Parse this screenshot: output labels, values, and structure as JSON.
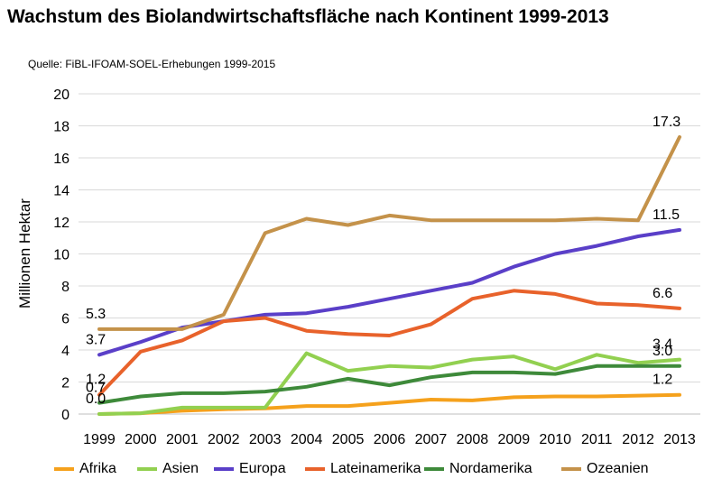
{
  "title": "Wachstum des Biolandwirtschaftsfläche nach Kontinent 1999-2013",
  "source": "Quelle: FiBL-IFOAM-SOEL-Erhebungen 1999-2015",
  "chart_data": {
    "type": "line",
    "title": "Wachstum des Biolandwirtschaftsfläche nach Kontinent 1999-2013",
    "subtitle": "Quelle: FiBL-IFOAM-SOEL-Erhebungen 1999-2015",
    "xlabel": "",
    "ylabel": "Millionen Hektar",
    "ylim": [
      0,
      20
    ],
    "yticks": [
      "0",
      "2",
      "4",
      "6",
      "8",
      "10",
      "12",
      "14",
      "16",
      "18",
      "20"
    ],
    "categories": [
      "1999",
      "2000",
      "2001",
      "2002",
      "2003",
      "2004",
      "2005",
      "2006",
      "2007",
      "2008",
      "2009",
      "2010",
      "2011",
      "2012",
      "2013"
    ],
    "grid": "horizontal",
    "legend": "bottom",
    "series": [
      {
        "name": "Afrika",
        "color": "#f5a11c",
        "values": [
          0.0,
          0.05,
          0.2,
          0.3,
          0.35,
          0.5,
          0.5,
          0.7,
          0.9,
          0.85,
          1.05,
          1.1,
          1.1,
          1.15,
          1.2
        ],
        "labels": [
          {
            "i": 0,
            "text": "0.0"
          },
          {
            "i": 14,
            "text": "1.2"
          }
        ]
      },
      {
        "name": "Asien",
        "color": "#92d050",
        "values": [
          0.0,
          0.05,
          0.4,
          0.4,
          0.4,
          3.8,
          2.7,
          3.0,
          2.9,
          3.4,
          3.6,
          2.8,
          3.7,
          3.2,
          3.4
        ],
        "labels": [
          {
            "i": 14,
            "text": "3.4"
          }
        ]
      },
      {
        "name": "Europa",
        "color": "#5a3fc8",
        "values": [
          3.7,
          4.5,
          5.4,
          5.8,
          6.2,
          6.3,
          6.7,
          7.2,
          7.7,
          8.2,
          9.2,
          10.0,
          10.5,
          11.1,
          11.5
        ],
        "labels": [
          {
            "i": 0,
            "text": "3.7"
          },
          {
            "i": 14,
            "text": "11.5"
          }
        ]
      },
      {
        "name": "Lateinamerika",
        "color": "#e8622b",
        "values": [
          1.2,
          3.9,
          4.6,
          5.8,
          6.0,
          5.2,
          5.0,
          4.9,
          5.6,
          7.2,
          7.7,
          7.5,
          6.9,
          6.8,
          6.6
        ],
        "labels": [
          {
            "i": 0,
            "text": "1.2"
          },
          {
            "i": 14,
            "text": "6.6"
          }
        ]
      },
      {
        "name": "Nordamerika",
        "color": "#3e8a3a",
        "values": [
          0.7,
          1.1,
          1.3,
          1.3,
          1.4,
          1.7,
          2.2,
          1.8,
          2.3,
          2.6,
          2.6,
          2.5,
          3.0,
          3.0,
          3.0
        ],
        "labels": [
          {
            "i": 0,
            "text": "0.7"
          },
          {
            "i": 14,
            "text": "3.0"
          }
        ]
      },
      {
        "name": "Ozeanien",
        "color": "#c4924a",
        "values": [
          5.3,
          5.3,
          5.3,
          6.2,
          11.3,
          12.2,
          11.8,
          12.4,
          12.1,
          12.1,
          12.1,
          12.1,
          12.2,
          12.1,
          17.3
        ],
        "labels": [
          {
            "i": 0,
            "text": "5.3"
          },
          {
            "i": 14,
            "text": "17.3"
          }
        ]
      }
    ]
  }
}
